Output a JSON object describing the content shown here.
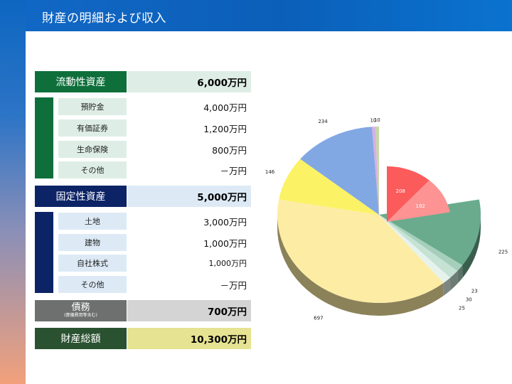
{
  "page": {
    "title": "財産の明細および収入"
  },
  "colors": {
    "liquid": "#0e6f3b",
    "liquid_light": "#deeee6",
    "fixed": "#0c2366",
    "fixed_light": "#ddeaf6",
    "debt": "#6e7070",
    "debt_light": "#d4d4d4",
    "total": "#2a5230",
    "total_light": "#e6e392"
  },
  "table": {
    "liquid": {
      "label": "流動性資産",
      "value": "6,000万円",
      "items": [
        {
          "label": "預貯金",
          "value": "4,000万円"
        },
        {
          "label": "有価証券",
          "value": "1,200万円"
        },
        {
          "label": "生命保険",
          "value": "800万円"
        },
        {
          "label": "その他",
          "value": "－万円"
        }
      ]
    },
    "fixed": {
      "label": "固定性資産",
      "value": "5,000万円",
      "items": [
        {
          "label": "土地",
          "value": "3,000万円"
        },
        {
          "label": "建物",
          "value": "1,000万円"
        },
        {
          "label": "自社株式",
          "value": "1,000万円"
        },
        {
          "label": "その他",
          "value": "－万円"
        }
      ]
    },
    "debt": {
      "label": "債務",
      "sublabel": "(葬儀費用等含む)",
      "value": "700万円"
    },
    "total": {
      "label": "財産総額",
      "value": "10,300万円"
    }
  },
  "chart_data": {
    "type": "pie",
    "title": "",
    "slices": [
      {
        "value": 225,
        "label": "225",
        "color": "#6aab8e"
      },
      {
        "value": 23,
        "label": "23",
        "color": "#a5cfbb"
      },
      {
        "value": 30,
        "label": "30",
        "color": "#c5e2d4"
      },
      {
        "value": 25,
        "label": "25",
        "color": "#e6f3ed"
      },
      {
        "value": 697,
        "label": "697",
        "color": "#fdeca4"
      },
      {
        "value": 146,
        "label": "146",
        "color": "#fbf265"
      },
      {
        "value": 234,
        "label": "234",
        "color": "#82a8e3"
      },
      {
        "value": 10,
        "label": "10",
        "color": "#d8aee8"
      },
      {
        "value": 10,
        "label": "10",
        "color": "#c5d8a5"
      }
    ],
    "exploded_slices": [
      {
        "value": 208,
        "label": "208",
        "color": "#fc5b5b"
      },
      {
        "value": 192,
        "label": "192",
        "color": "#fd9393"
      }
    ]
  }
}
